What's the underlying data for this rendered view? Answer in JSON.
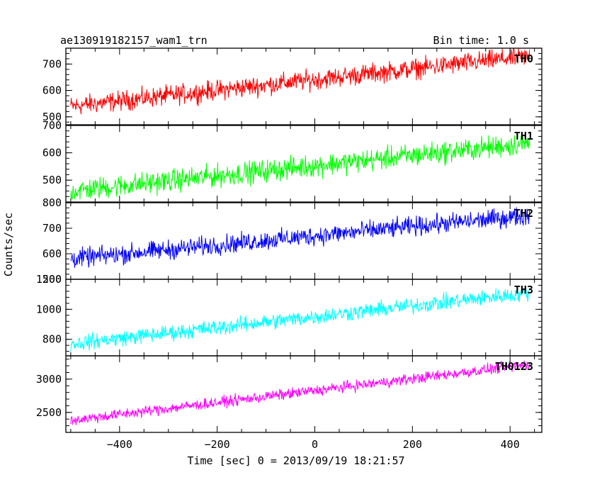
{
  "header": {
    "left_title": "ae130919182157_wam1_trn",
    "right_title": "Bin time: 1.0 s"
  },
  "chart_data": {
    "type": "line",
    "shared_x": {
      "label": "Time [sec] 0 = 2013/09/19 18:21:57",
      "range": [
        -510,
        465
      ],
      "ticks": [
        -400,
        -200,
        0,
        200,
        400
      ],
      "tick_labels": [
        "−400",
        "−200",
        "0",
        "200",
        "400"
      ]
    },
    "ylabel": "Counts/sec",
    "panels": [
      {
        "name": "TH0",
        "color": "#ff0000",
        "ylim": [
          470,
          760
        ],
        "yticks": [
          500,
          600,
          700
        ],
        "ytick_labels": [
          "500",
          "600",
          "700"
        ],
        "trend": {
          "x": [
            -500,
            440
          ],
          "y": [
            540,
            730
          ]
        },
        "noise": 32
      },
      {
        "name": "TH1",
        "color": "#00ff00",
        "ylim": [
          420,
          700
        ],
        "yticks": [
          500,
          600,
          700
        ],
        "ytick_labels": [
          "500",
          "600",
          "700"
        ],
        "trend": {
          "x": [
            -500,
            440
          ],
          "y": [
            460,
            635
          ]
        },
        "noise": 35
      },
      {
        "name": "TH2",
        "color": "#0000ff",
        "ylim": [
          500,
          800
        ],
        "yticks": [
          500,
          600,
          700,
          800
        ],
        "ytick_labels": [
          "500",
          "600",
          "700",
          "800"
        ],
        "trend": {
          "x": [
            -500,
            440
          ],
          "y": [
            580,
            750
          ]
        },
        "noise": 32
      },
      {
        "name": "TH3",
        "color": "#00ffff",
        "ylim": [
          690,
          1200
        ],
        "yticks": [
          800,
          1000,
          1200
        ],
        "ytick_labels": [
          "800",
          "1000",
          "1200"
        ],
        "trend": {
          "x": [
            -500,
            440
          ],
          "y": [
            770,
            1110
          ]
        },
        "noise": 45
      },
      {
        "name": "TH0123",
        "color": "#ff00ff",
        "ylim": [
          2200,
          3350
        ],
        "yticks": [
          2500,
          3000
        ],
        "ytick_labels": [
          "2500",
          "3000"
        ],
        "trend": {
          "x": [
            -500,
            440
          ],
          "y": [
            2380,
            3220
          ]
        },
        "noise": 70
      }
    ]
  }
}
